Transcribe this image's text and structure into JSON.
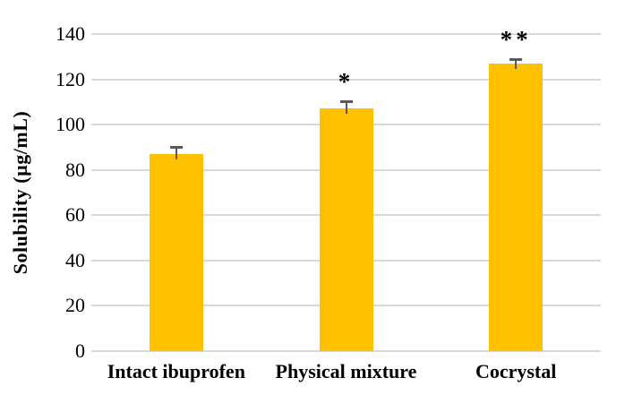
{
  "chart_data": {
    "type": "bar",
    "title": "",
    "xlabel": "",
    "ylabel": "Solubility (µg/mL)",
    "categories": [
      "Intact ibuprofen",
      "Physical mixture",
      "Cocrystal"
    ],
    "values": [
      87,
      107,
      127
    ],
    "error_bars": [
      3,
      3.5,
      2
    ],
    "annotations": [
      "",
      "*",
      "**"
    ],
    "ylim": [
      0,
      140
    ],
    "yticks": [
      0,
      20,
      40,
      60,
      80,
      100,
      120,
      140
    ],
    "grid": true,
    "legend": "none",
    "colors": {
      "bar": "#FFC000",
      "error": "#595959",
      "gridline": "#D9D9D9",
      "text": "#000000",
      "background": "#FFFFFF"
    }
  }
}
